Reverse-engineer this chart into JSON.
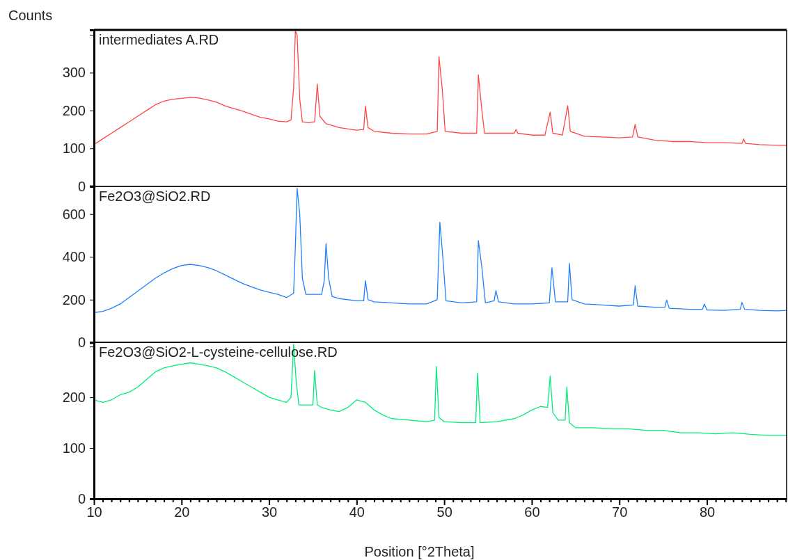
{
  "chart_data": [
    {
      "type": "line",
      "title": "intermediates A.RD",
      "ylabel": "Counts",
      "xlim": [
        10,
        89.1
      ],
      "ylim": [
        0,
        413
      ],
      "yticks": [
        0,
        100,
        200,
        300,
        {
          "value": 400,
          "label": null
        }
      ],
      "tick_labels": "y",
      "series": [
        {
          "color": "#ff4545",
          "x": [
            10,
            11,
            12,
            13,
            14,
            15,
            16,
            17,
            18,
            19,
            20,
            21,
            22,
            23,
            24,
            25,
            26,
            27,
            28,
            29,
            30,
            31,
            32,
            32.5,
            32.8,
            33.0,
            33.2,
            33.5,
            33.8,
            34.5,
            35.2,
            35.5,
            35.8,
            36.5,
            38,
            40,
            40.8,
            41.0,
            41.3,
            42,
            44,
            46,
            48,
            49.2,
            49.4,
            49.8,
            50.1,
            52,
            53.7,
            53.9,
            54.3,
            54.6,
            56,
            58,
            58.2,
            58.4,
            60,
            61.5,
            62.1,
            62.4,
            63.5,
            64.1,
            64.4,
            66,
            68,
            70,
            71.5,
            71.8,
            72.1,
            74,
            76,
            78,
            80,
            82,
            84,
            84.2,
            84.4,
            86,
            88,
            89.1
          ],
          "values": [
            110,
            125,
            140,
            155,
            170,
            185,
            200,
            215,
            225,
            230,
            232,
            235,
            233,
            228,
            222,
            212,
            205,
            198,
            190,
            182,
            178,
            172,
            170,
            175,
            260,
            410,
            400,
            230,
            170,
            168,
            170,
            270,
            185,
            165,
            155,
            148,
            150,
            212,
            155,
            145,
            140,
            138,
            138,
            145,
            342,
            250,
            145,
            140,
            140,
            294,
            200,
            140,
            140,
            140,
            150,
            140,
            135,
            135,
            196,
            140,
            135,
            213,
            145,
            132,
            130,
            128,
            130,
            163,
            130,
            122,
            118,
            118,
            115,
            115,
            113,
            125,
            113,
            110,
            108,
            108
          ]
        }
      ]
    },
    {
      "type": "line",
      "title": "Fe2O3@SiO2.RD",
      "xlim": [
        10,
        89.1
      ],
      "ylim": [
        0,
        730
      ],
      "yticks": [
        0,
        200,
        400,
        600
      ],
      "tick_labels": "y",
      "series": [
        {
          "color": "#1f80ff",
          "x": [
            10,
            11,
            12,
            13,
            14,
            15,
            16,
            17,
            18,
            19,
            20,
            21,
            22,
            23,
            24,
            25,
            26,
            27,
            28,
            29,
            30,
            31,
            32,
            32.8,
            33.0,
            33.2,
            33.5,
            33.8,
            34.2,
            35,
            36,
            36.3,
            36.5,
            36.8,
            37.2,
            38,
            40,
            40.8,
            41.0,
            41.3,
            42,
            44,
            46,
            48,
            49.2,
            49.5,
            49.8,
            50.2,
            52,
            53.7,
            53.9,
            54.3,
            54.7,
            55.7,
            55.9,
            56.2,
            58,
            60,
            62.0,
            62.3,
            62.7,
            64.1,
            64.3,
            64.6,
            66,
            68,
            70,
            71.6,
            71.8,
            72.1,
            74,
            75.2,
            75.4,
            75.7,
            78,
            79.5,
            79.7,
            80,
            82,
            83.8,
            84.0,
            84.3,
            86,
            88,
            89.1
          ],
          "values": [
            140,
            145,
            160,
            180,
            210,
            240,
            270,
            300,
            325,
            345,
            360,
            365,
            360,
            350,
            335,
            315,
            295,
            275,
            260,
            245,
            235,
            225,
            210,
            230,
            450,
            720,
            600,
            300,
            225,
            225,
            225,
            290,
            462,
            300,
            215,
            205,
            195,
            195,
            289,
            200,
            190,
            185,
            180,
            180,
            200,
            562,
            420,
            195,
            185,
            190,
            476,
            350,
            185,
            195,
            243,
            190,
            180,
            180,
            185,
            349,
            190,
            190,
            369,
            200,
            180,
            175,
            170,
            175,
            265,
            170,
            165,
            165,
            198,
            160,
            155,
            155,
            180,
            152,
            150,
            155,
            187,
            155,
            150,
            148,
            150
          ]
        }
      ]
    },
    {
      "type": "line",
      "title": "Fe2O3@SiO2-L-cysteine-cellulose.RD",
      "xlabel": "Position [°2Theta]",
      "xlim": [
        10,
        89.1
      ],
      "ylim": [
        0,
        308
      ],
      "xticks": [
        10,
        {
          "value": 11,
          "label": null
        },
        {
          "value": 12,
          "label": null
        },
        {
          "value": 13,
          "label": null
        },
        {
          "value": 14,
          "label": null
        },
        {
          "value": 15,
          "label": null
        },
        {
          "value": 16,
          "label": null
        },
        {
          "value": 17,
          "label": null
        },
        {
          "value": 18,
          "label": null
        },
        {
          "value": 19,
          "label": null
        },
        20,
        {
          "value": 21,
          "label": null
        },
        {
          "value": 22,
          "label": null
        },
        {
          "value": 23,
          "label": null
        },
        {
          "value": 24,
          "label": null
        },
        {
          "value": 25,
          "label": null
        },
        {
          "value": 26,
          "label": null
        },
        {
          "value": 27,
          "label": null
        },
        {
          "value": 28,
          "label": null
        },
        {
          "value": 29,
          "label": null
        },
        30,
        {
          "value": 31,
          "label": null
        },
        {
          "value": 32,
          "label": null
        },
        {
          "value": 33,
          "label": null
        },
        {
          "value": 34,
          "label": null
        },
        {
          "value": 35,
          "label": null
        },
        {
          "value": 36,
          "label": null
        },
        {
          "value": 37,
          "label": null
        },
        {
          "value": 38,
          "label": null
        },
        {
          "value": 39,
          "label": null
        },
        40,
        {
          "value": 41,
          "label": null
        },
        {
          "value": 42,
          "label": null
        },
        {
          "value": 43,
          "label": null
        },
        {
          "value": 44,
          "label": null
        },
        {
          "value": 45,
          "label": null
        },
        {
          "value": 46,
          "label": null
        },
        {
          "value": 47,
          "label": null
        },
        {
          "value": 48,
          "label": null
        },
        {
          "value": 49,
          "label": null
        },
        50,
        {
          "value": 51,
          "label": null
        },
        {
          "value": 52,
          "label": null
        },
        {
          "value": 53,
          "label": null
        },
        {
          "value": 54,
          "label": null
        },
        {
          "value": 55,
          "label": null
        },
        {
          "value": 56,
          "label": null
        },
        {
          "value": 57,
          "label": null
        },
        {
          "value": 58,
          "label": null
        },
        {
          "value": 59,
          "label": null
        },
        60,
        {
          "value": 61,
          "label": null
        },
        {
          "value": 62,
          "label": null
        },
        {
          "value": 63,
          "label": null
        },
        {
          "value": 64,
          "label": null
        },
        {
          "value": 65,
          "label": null
        },
        {
          "value": 66,
          "label": null
        },
        {
          "value": 67,
          "label": null
        },
        {
          "value": 68,
          "label": null
        },
        {
          "value": 69,
          "label": null
        },
        70,
        {
          "value": 71,
          "label": null
        },
        {
          "value": 72,
          "label": null
        },
        {
          "value": 73,
          "label": null
        },
        {
          "value": 74,
          "label": null
        },
        {
          "value": 75,
          "label": null
        },
        {
          "value": 76,
          "label": null
        },
        {
          "value": 77,
          "label": null
        },
        {
          "value": 78,
          "label": null
        },
        {
          "value": 79,
          "label": null
        },
        80,
        {
          "value": 81,
          "label": null
        },
        {
          "value": 82,
          "label": null
        },
        {
          "value": 83,
          "label": null
        },
        {
          "value": 84,
          "label": null
        },
        {
          "value": 85,
          "label": null
        },
        {
          "value": 86,
          "label": null
        },
        {
          "value": 87,
          "label": null
        },
        {
          "value": 88,
          "label": null
        },
        {
          "value": 89,
          "label": null
        }
      ],
      "yticks": [
        0,
        100,
        200,
        {
          "value": 300,
          "label": null
        }
      ],
      "series": [
        {
          "color": "#00ee7a",
          "x": [
            10,
            11,
            12,
            13,
            14,
            15,
            16,
            17,
            18,
            19,
            20,
            21,
            22,
            23,
            24,
            25,
            26,
            27,
            28,
            29,
            30,
            31,
            32,
            32.5,
            32.8,
            33.1,
            33.4,
            34.5,
            35.0,
            35.2,
            35.5,
            36,
            37,
            38,
            39,
            40,
            41,
            42,
            43,
            44,
            46,
            48,
            48.9,
            49.1,
            49.4,
            50,
            52,
            53.6,
            53.8,
            54.1,
            56,
            58,
            59,
            60,
            61,
            61.8,
            62.1,
            62.4,
            63,
            63.8,
            64.0,
            64.3,
            65,
            67,
            69,
            71,
            73,
            75,
            77,
            79,
            81,
            83,
            85,
            87,
            89.1
          ],
          "values": [
            195,
            190,
            195,
            205,
            210,
            220,
            235,
            250,
            258,
            262,
            265,
            268,
            265,
            262,
            258,
            250,
            240,
            230,
            220,
            210,
            200,
            195,
            190,
            200,
            305,
            230,
            185,
            185,
            185,
            253,
            185,
            180,
            175,
            172,
            180,
            195,
            190,
            175,
            165,
            158,
            155,
            152,
            155,
            261,
            160,
            152,
            150,
            150,
            248,
            150,
            152,
            158,
            165,
            175,
            182,
            180,
            242,
            170,
            155,
            155,
            220,
            150,
            140,
            140,
            138,
            138,
            135,
            135,
            130,
            130,
            128,
            130,
            127,
            125,
            125
          ]
        }
      ]
    }
  ]
}
